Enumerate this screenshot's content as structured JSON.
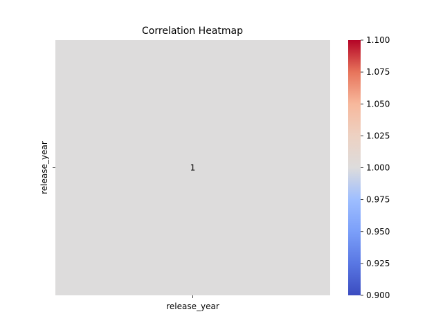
{
  "chart_data": {
    "type": "heatmap",
    "title": "Correlation Heatmap",
    "x_labels": [
      "release_year"
    ],
    "y_labels": [
      "release_year"
    ],
    "values": [
      [
        1.0
      ]
    ],
    "annotations": [
      [
        "1"
      ]
    ],
    "colormap": "coolwarm",
    "cell_color": "#dddcdc",
    "colorbar": {
      "min": 0.9,
      "max": 1.1,
      "ticks": [
        "0.900",
        "0.925",
        "0.950",
        "0.975",
        "1.000",
        "1.025",
        "1.050",
        "1.075",
        "1.100"
      ],
      "tick_values": [
        0.9,
        0.925,
        0.95,
        0.975,
        1.0,
        1.025,
        1.05,
        1.075,
        1.1
      ],
      "stops": [
        {
          "value": 0.9,
          "color": "#3b4cc0"
        },
        {
          "value": 0.925,
          "color": "#5977e3"
        },
        {
          "value": 0.95,
          "color": "#7b9ff9"
        },
        {
          "value": 0.975,
          "color": "#9ebeff"
        },
        {
          "value": 1.0,
          "color": "#dddcdc"
        },
        {
          "value": 1.025,
          "color": "#edd1c2"
        },
        {
          "value": 1.05,
          "color": "#f7b89c"
        },
        {
          "value": 1.075,
          "color": "#e7745b"
        },
        {
          "value": 1.1,
          "color": "#b40426"
        }
      ]
    }
  }
}
